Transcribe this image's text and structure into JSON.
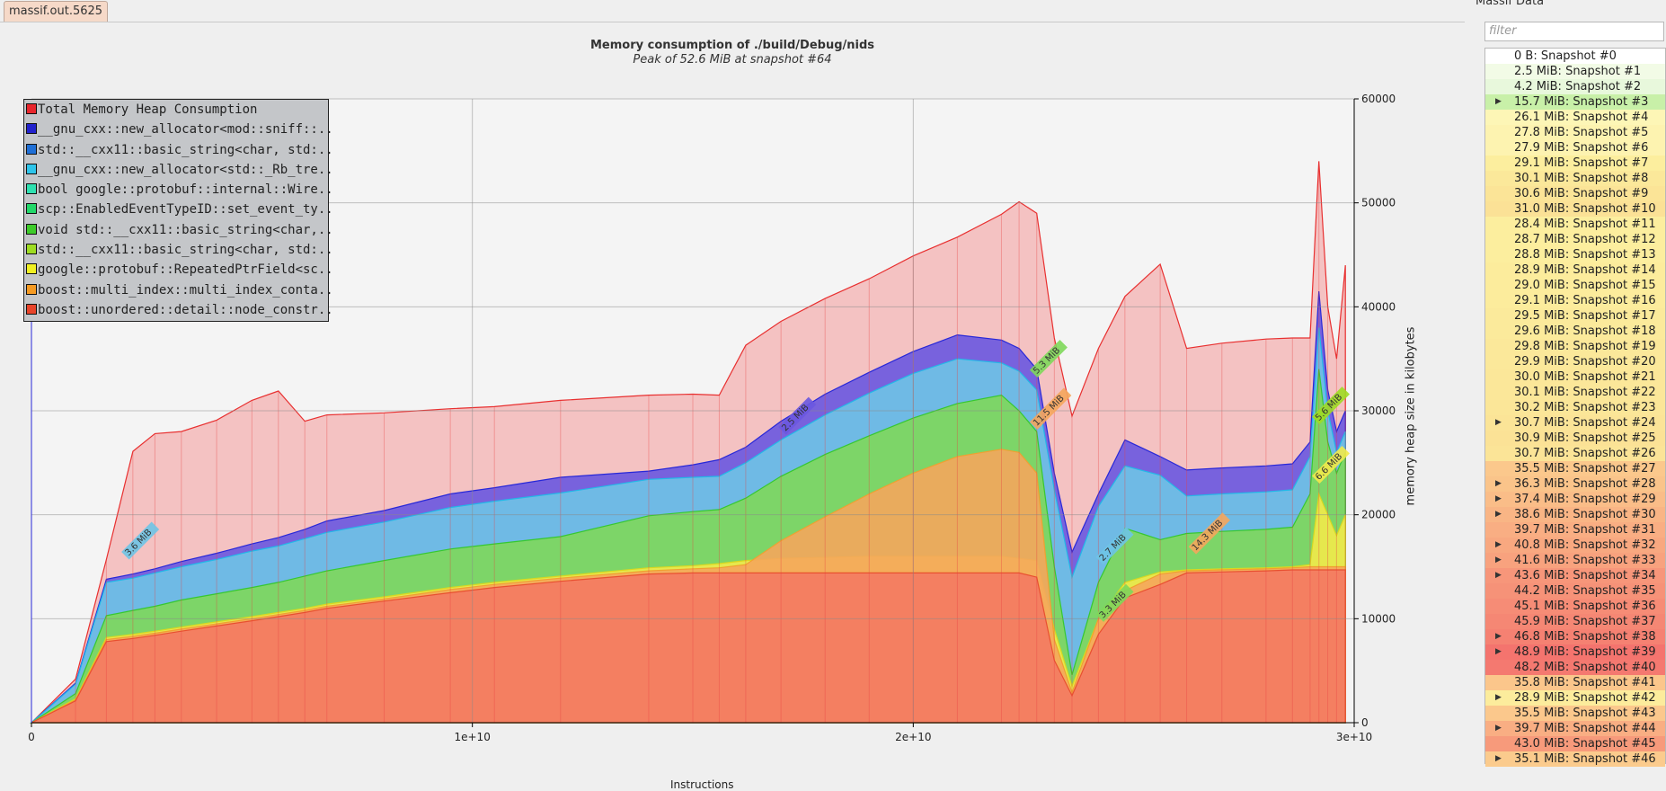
{
  "tab": {
    "label": "massif.out.5625"
  },
  "chart_title": "Memory consumption of ./build/Debug/nids",
  "chart_subtitle": "Peak of 52.6 MiB at snapshot #64",
  "sidebar": {
    "title": "Massif Data",
    "filter_placeholder": "filter",
    "snapshots": [
      {
        "label": "0 B: Snapshot #0",
        "color": "#ffffff",
        "expand": false
      },
      {
        "label": "2.5 MiB: Snapshot #1",
        "color": "#f2fbe6",
        "expand": false
      },
      {
        "label": "4.2 MiB: Snapshot #2",
        "color": "#e8f8dc",
        "expand": false
      },
      {
        "label": "15.7 MiB: Snapshot #3",
        "color": "#c8f0a8",
        "expand": true
      },
      {
        "label": "26.1 MiB: Snapshot #4",
        "color": "#fdf6b6",
        "expand": false
      },
      {
        "label": "27.8 MiB: Snapshot #5",
        "color": "#fdf3b0",
        "expand": false
      },
      {
        "label": "27.9 MiB: Snapshot #6",
        "color": "#fdf3b0",
        "expand": false
      },
      {
        "label": "29.1 MiB: Snapshot #7",
        "color": "#fcee9e",
        "expand": false
      },
      {
        "label": "30.1 MiB: Snapshot #8",
        "color": "#fbe89a",
        "expand": false
      },
      {
        "label": "30.6 MiB: Snapshot #9",
        "color": "#fbe497",
        "expand": false
      },
      {
        "label": "31.0 MiB: Snapshot #10",
        "color": "#fbe196",
        "expand": false
      },
      {
        "label": "28.4 MiB: Snapshot #11",
        "color": "#fcee9e",
        "expand": false
      },
      {
        "label": "28.7 MiB: Snapshot #12",
        "color": "#fcee9e",
        "expand": false
      },
      {
        "label": "28.8 MiB: Snapshot #13",
        "color": "#fcee9e",
        "expand": false
      },
      {
        "label": "28.9 MiB: Snapshot #14",
        "color": "#fcec9c",
        "expand": false
      },
      {
        "label": "29.0 MiB: Snapshot #15",
        "color": "#fcec9c",
        "expand": false
      },
      {
        "label": "29.1 MiB: Snapshot #16",
        "color": "#fcec9c",
        "expand": false
      },
      {
        "label": "29.5 MiB: Snapshot #17",
        "color": "#fbea9b",
        "expand": false
      },
      {
        "label": "29.6 MiB: Snapshot #18",
        "color": "#fbea9b",
        "expand": false
      },
      {
        "label": "29.8 MiB: Snapshot #19",
        "color": "#fbe89a",
        "expand": false
      },
      {
        "label": "29.9 MiB: Snapshot #20",
        "color": "#fbe89a",
        "expand": false
      },
      {
        "label": "30.0 MiB: Snapshot #21",
        "color": "#fbe799",
        "expand": false
      },
      {
        "label": "30.1 MiB: Snapshot #22",
        "color": "#fbe799",
        "expand": false
      },
      {
        "label": "30.2 MiB: Snapshot #23",
        "color": "#fbe698",
        "expand": false
      },
      {
        "label": "30.7 MiB: Snapshot #24",
        "color": "#fbe497",
        "expand": true
      },
      {
        "label": "30.9 MiB: Snapshot #25",
        "color": "#fbe296",
        "expand": false
      },
      {
        "label": "30.7 MiB: Snapshot #26",
        "color": "#fbe497",
        "expand": false
      },
      {
        "label": "35.5 MiB: Snapshot #27",
        "color": "#fbc88c",
        "expand": false
      },
      {
        "label": "36.3 MiB: Snapshot #28",
        "color": "#fac48a",
        "expand": true
      },
      {
        "label": "37.4 MiB: Snapshot #29",
        "color": "#fabd88",
        "expand": true
      },
      {
        "label": "38.6 MiB: Snapshot #30",
        "color": "#f9b585",
        "expand": true
      },
      {
        "label": "39.7 MiB: Snapshot #31",
        "color": "#f9ae83",
        "expand": false
      },
      {
        "label": "40.8 MiB: Snapshot #32",
        "color": "#f8a880",
        "expand": true
      },
      {
        "label": "41.6 MiB: Snapshot #33",
        "color": "#f8a27e",
        "expand": true
      },
      {
        "label": "43.6 MiB: Snapshot #34",
        "color": "#f7967a",
        "expand": true
      },
      {
        "label": "44.2 MiB: Snapshot #35",
        "color": "#f69278",
        "expand": false
      },
      {
        "label": "45.1 MiB: Snapshot #36",
        "color": "#f68c76",
        "expand": false
      },
      {
        "label": "45.9 MiB: Snapshot #37",
        "color": "#f58774",
        "expand": false
      },
      {
        "label": "46.8 MiB: Snapshot #38",
        "color": "#f58172",
        "expand": true
      },
      {
        "label": "48.9 MiB: Snapshot #39",
        "color": "#f4746e",
        "expand": true
      },
      {
        "label": "48.2 MiB: Snapshot #40",
        "color": "#f47970",
        "expand": false
      },
      {
        "label": "35.8 MiB: Snapshot #41",
        "color": "#fbc68b",
        "expand": false
      },
      {
        "label": "28.9 MiB: Snapshot #42",
        "color": "#fcec9c",
        "expand": true
      },
      {
        "label": "35.5 MiB: Snapshot #43",
        "color": "#fbc88c",
        "expand": false
      },
      {
        "label": "39.7 MiB: Snapshot #44",
        "color": "#f9ae83",
        "expand": true
      },
      {
        "label": "43.0 MiB: Snapshot #45",
        "color": "#f79a7b",
        "expand": false
      },
      {
        "label": "35.1 MiB: Snapshot #46",
        "color": "#fbcb8d",
        "expand": true
      }
    ]
  },
  "legend": [
    {
      "label": "Total Memory Heap Consumption",
      "color": "#e8262d"
    },
    {
      "label": "__gnu_cxx::new_allocator<mod::sniff::..",
      "color": "#2222cc"
    },
    {
      "label": "std::__cxx11::basic_string<char, std:..",
      "color": "#1f6fd6"
    },
    {
      "label": "__gnu_cxx::new_allocator<std::_Rb_tre..",
      "color": "#2ec4ea"
    },
    {
      "label": "bool google::protobuf::internal::Wire..",
      "color": "#2ee0b0"
    },
    {
      "label": "scp::EnabledEventTypeID::set_event_ty..",
      "color": "#22d86a"
    },
    {
      "label": "void std::__cxx11::basic_string<char,..",
      "color": "#3ecb2a"
    },
    {
      "label": "std::__cxx11::basic_string<char, std:..",
      "color": "#9edc22"
    },
    {
      "label": "google::protobuf::RepeatedPtrField<sc..",
      "color": "#f0f022"
    },
    {
      "label": "boost::multi_index::multi_index_conta..",
      "color": "#f59a22"
    },
    {
      "label": "boost::unordered::detail::node_constr..",
      "color": "#e8442a"
    }
  ],
  "axes": {
    "ylabel": "memory heap size in kilobytes",
    "xlabel": "Instructions"
  },
  "chart_data": {
    "type": "area",
    "xlim": [
      0,
      30000000000
    ],
    "ylim": [
      0,
      60000
    ],
    "x_ticks": [
      "0",
      "1e+10",
      "2e+10",
      "3e+10"
    ],
    "y_ticks": [
      "0",
      "10000",
      "20000",
      "30000",
      "40000",
      "50000",
      "60000"
    ],
    "x_tick_values": [
      0,
      10000000000,
      20000000000,
      30000000000
    ],
    "y_tick_values": [
      0,
      10000,
      20000,
      30000,
      40000,
      50000,
      60000
    ],
    "x": [
      0,
      1000000000,
      1700000000,
      2300000000,
      2800000000,
      3400000000,
      4200000000,
      5000000000,
      5600000000,
      6200000000,
      6700000000,
      8000000000,
      9500000000,
      10500000000,
      12000000000,
      14000000000,
      15000000000,
      15600000000,
      16200000000,
      17000000000,
      18000000000,
      19000000000,
      20000000000,
      21000000000,
      22000000000,
      22400000000,
      22800000000,
      23200000000,
      23600000000,
      24200000000,
      24800000000,
      25600000000,
      26200000000,
      27000000000,
      28000000000,
      28600000000,
      29000000000,
      29200000000,
      29400000000,
      29600000000,
      29800000000
    ],
    "series": [
      {
        "name": "Total Memory Heap Consumption",
        "values": [
          0,
          4200,
          15700,
          26100,
          27800,
          28000,
          29100,
          31000,
          31900,
          29000,
          29600,
          29800,
          30200,
          30400,
          31000,
          31500,
          31600,
          31500,
          36300,
          38600,
          40800,
          42700,
          44900,
          46700,
          48900,
          50100,
          49000,
          37000,
          29500,
          36000,
          41000,
          44100,
          36000,
          36500,
          36900,
          37000,
          37000,
          54000,
          40000,
          35000,
          44000
        ]
      },
      {
        "name": "__gnu_cxx::new_allocator<mod::sniff::..",
        "values": [
          0,
          3800,
          13800,
          14300,
          14800,
          15500,
          16300,
          17200,
          17800,
          18600,
          19400,
          20400,
          22000,
          22600,
          23600,
          24200,
          24800,
          25300,
          26500,
          29000,
          31600,
          33700,
          35700,
          37300,
          36800,
          36000,
          34000,
          24000,
          16400,
          22000,
          27200,
          25600,
          24300,
          24500,
          24700,
          24900,
          27000,
          41500,
          32000,
          28000,
          30000
        ]
      },
      {
        "name": "__gnu_cxx::new_allocator<std::_Rb_tre..",
        "values": [
          0,
          3700,
          13500,
          13900,
          14400,
          15000,
          15700,
          16500,
          17000,
          17700,
          18300,
          19300,
          20700,
          21300,
          22100,
          23400,
          23600,
          23700,
          25000,
          27200,
          29600,
          31700,
          33600,
          35000,
          34600,
          33800,
          32000,
          22400,
          14000,
          20800,
          24700,
          23800,
          21800,
          22000,
          22200,
          22400,
          25600,
          38000,
          30000,
          26000,
          28000
        ]
      },
      {
        "name": "void std::__cxx11::basic_string<char,..",
        "values": [
          0,
          2800,
          10300,
          10800,
          11200,
          11800,
          12400,
          13000,
          13500,
          14100,
          14600,
          15600,
          16700,
          17200,
          17900,
          19900,
          20300,
          20500,
          21600,
          23700,
          25800,
          27600,
          29300,
          30700,
          31500,
          30000,
          28000,
          15000,
          4600,
          13500,
          18700,
          17600,
          18200,
          18400,
          18600,
          18800,
          22000,
          34000,
          27000,
          24000,
          26000
        ]
      },
      {
        "name": "google::protobuf::RepeatedPtrField<sc..",
        "values": [
          0,
          2300,
          8200,
          8500,
          8800,
          9200,
          9700,
          10200,
          10600,
          11000,
          11400,
          12100,
          13000,
          13500,
          14100,
          14900,
          15100,
          15300,
          15600,
          15800,
          15900,
          16000,
          16000,
          16000,
          16000,
          15800,
          15600,
          9000,
          3500,
          10000,
          13500,
          14500,
          14700,
          14800,
          14900,
          15000,
          15200,
          22000,
          20000,
          18000,
          20000
        ]
      },
      {
        "name": "boost::multi_index::multi_index_conta..",
        "values": [
          0,
          2200,
          8000,
          8300,
          8600,
          9000,
          9500,
          10000,
          10400,
          10800,
          11200,
          11900,
          12800,
          13300,
          13900,
          14600,
          14800,
          14900,
          15200,
          17500,
          19800,
          22000,
          24000,
          25600,
          26300,
          26000,
          24000,
          8000,
          2900,
          10000,
          12700,
          14300,
          14600,
          14700,
          14800,
          14900,
          15000,
          15000,
          15000,
          15000,
          15000
        ]
      },
      {
        "name": "boost::unordered::detail::node_constr..",
        "values": [
          0,
          2100,
          7800,
          8100,
          8400,
          8800,
          9300,
          9800,
          10200,
          10600,
          11000,
          11700,
          12500,
          13000,
          13600,
          14300,
          14400,
          14400,
          14400,
          14400,
          14400,
          14400,
          14400,
          14400,
          14400,
          14400,
          14000,
          6000,
          2600,
          8500,
          12000,
          13300,
          14400,
          14500,
          14600,
          14700,
          14700,
          14700,
          14700,
          14700,
          14700
        ]
      }
    ],
    "annotations": [
      "3.6 MiB",
      "2.5 MiB",
      "5.3 MiB",
      "11.5 MiB",
      "2.7 MiB",
      "3.3 MiB",
      "14.3 MiB",
      "5.6 MiB",
      "6.6 MiB"
    ]
  }
}
